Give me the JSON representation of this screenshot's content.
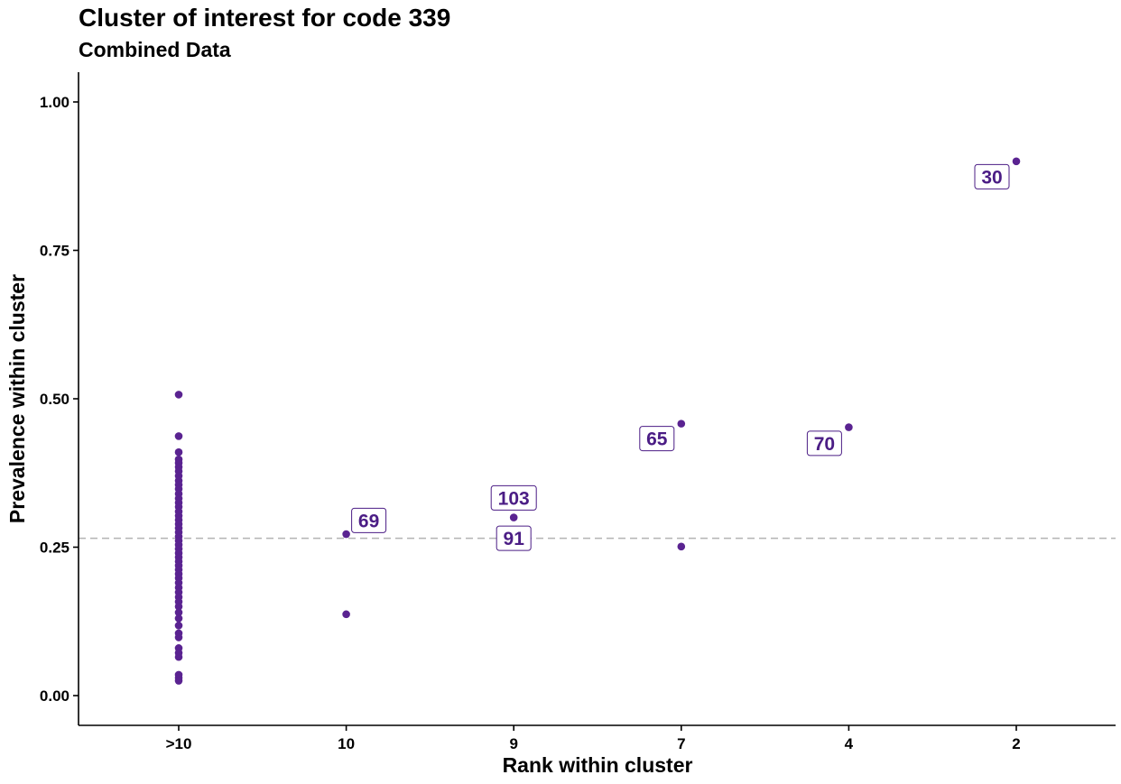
{
  "chart_data": {
    "type": "scatter",
    "title": "Cluster of interest for code 339",
    "subtitle": "Combined Data",
    "xlabel": "Rank within cluster",
    "ylabel": "Prevalence within cluster",
    "categories": [
      ">10",
      "10",
      "9",
      "7",
      "4",
      "2"
    ],
    "yticks": [
      "0.00",
      "0.25",
      "0.50",
      "0.75",
      "1.00"
    ],
    "ylim": [
      -0.05,
      1.05
    ],
    "reference_line": 0.265,
    "point_color": "#5a2391",
    "label_color": "#4b1d85",
    "points": [
      {
        "x": ">10",
        "y": 0.507
      },
      {
        "x": ">10",
        "y": 0.437
      },
      {
        "x": ">10",
        "y": 0.41
      },
      {
        "x": ">10",
        "y": 0.398
      },
      {
        "x": ">10",
        "y": 0.392
      },
      {
        "x": ">10",
        "y": 0.385
      },
      {
        "x": ">10",
        "y": 0.378
      },
      {
        "x": ">10",
        "y": 0.37
      },
      {
        "x": ">10",
        "y": 0.362
      },
      {
        "x": ">10",
        "y": 0.355
      },
      {
        "x": ">10",
        "y": 0.348
      },
      {
        "x": ">10",
        "y": 0.34
      },
      {
        "x": ">10",
        "y": 0.332
      },
      {
        "x": ">10",
        "y": 0.325
      },
      {
        "x": ">10",
        "y": 0.318
      },
      {
        "x": ">10",
        "y": 0.31
      },
      {
        "x": ">10",
        "y": 0.303
      },
      {
        "x": ">10",
        "y": 0.296
      },
      {
        "x": ">10",
        "y": 0.289
      },
      {
        "x": ">10",
        "y": 0.282
      },
      {
        "x": ">10",
        "y": 0.275
      },
      {
        "x": ">10",
        "y": 0.268
      },
      {
        "x": ">10",
        "y": 0.261
      },
      {
        "x": ">10",
        "y": 0.254
      },
      {
        "x": ">10",
        "y": 0.247
      },
      {
        "x": ">10",
        "y": 0.24
      },
      {
        "x": ">10",
        "y": 0.233
      },
      {
        "x": ">10",
        "y": 0.226
      },
      {
        "x": ">10",
        "y": 0.219
      },
      {
        "x": ">10",
        "y": 0.212
      },
      {
        "x": ">10",
        "y": 0.205
      },
      {
        "x": ">10",
        "y": 0.198
      },
      {
        "x": ">10",
        "y": 0.19
      },
      {
        "x": ">10",
        "y": 0.182
      },
      {
        "x": ">10",
        "y": 0.174
      },
      {
        "x": ">10",
        "y": 0.166
      },
      {
        "x": ">10",
        "y": 0.158
      },
      {
        "x": ">10",
        "y": 0.15
      },
      {
        "x": ">10",
        "y": 0.14
      },
      {
        "x": ">10",
        "y": 0.13
      },
      {
        "x": ">10",
        "y": 0.118
      },
      {
        "x": ">10",
        "y": 0.105
      },
      {
        "x": ">10",
        "y": 0.098
      },
      {
        "x": ">10",
        "y": 0.08
      },
      {
        "x": ">10",
        "y": 0.072
      },
      {
        "x": ">10",
        "y": 0.065
      },
      {
        "x": ">10",
        "y": 0.035
      },
      {
        "x": ">10",
        "y": 0.03
      },
      {
        "x": ">10",
        "y": 0.025
      },
      {
        "x": "10",
        "y": 0.272
      },
      {
        "x": "10",
        "y": 0.137
      },
      {
        "x": "9",
        "y": 0.3
      },
      {
        "x": "7",
        "y": 0.458
      },
      {
        "x": "7",
        "y": 0.251
      },
      {
        "x": "4",
        "y": 0.452
      },
      {
        "x": "2",
        "y": 0.9
      }
    ],
    "labels": [
      {
        "text": "69",
        "x": "10",
        "y": 0.295,
        "anchor": "right"
      },
      {
        "text": "103",
        "x": "9",
        "y": 0.333,
        "anchor": "center"
      },
      {
        "text": "91",
        "x": "9",
        "y": 0.265,
        "anchor": "center"
      },
      {
        "text": "65",
        "x": "7",
        "y": 0.433,
        "anchor": "left"
      },
      {
        "text": "70",
        "x": "4",
        "y": 0.425,
        "anchor": "left"
      },
      {
        "text": "30",
        "x": "2",
        "y": 0.874,
        "anchor": "left"
      }
    ]
  }
}
